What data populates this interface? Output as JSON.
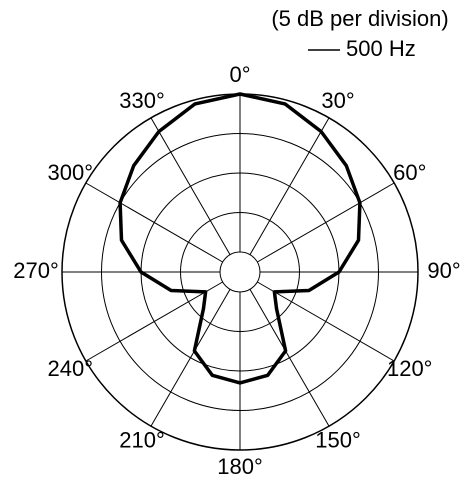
{
  "chart_data": {
    "type": "polar",
    "title": "(5 dB per division)",
    "series": [
      {
        "name": "500 Hz",
        "color": "#000000",
        "theta": [
          0,
          15,
          30,
          45,
          60,
          75,
          90,
          105,
          120,
          135,
          150,
          165,
          180,
          195,
          210,
          225,
          240,
          255,
          270,
          285,
          300,
          315,
          330,
          345
        ],
        "values": [
          0,
          -0.5,
          -2,
          -3.5,
          -5,
          -7,
          -10,
          -13.5,
          -17.5,
          -16,
          -11,
          -9,
          -8.5,
          -9,
          -11,
          -16,
          -17.5,
          -13.5,
          -10,
          -7,
          -5,
          -3.5,
          -2,
          -0.5
        ]
      }
    ],
    "rlim": [
      -20,
      0
    ],
    "rticks": [
      -20,
      -15,
      -10,
      -5,
      0
    ],
    "thetaticks": [
      {
        "value": 0,
        "label": "0°"
      },
      {
        "value": 30,
        "label": "30°"
      },
      {
        "value": 60,
        "label": "60°"
      },
      {
        "value": 90,
        "label": "90°"
      },
      {
        "value": 120,
        "label": "120°"
      },
      {
        "value": 150,
        "label": "150°"
      },
      {
        "value": 180,
        "label": "180°"
      },
      {
        "value": 210,
        "label": "210°"
      },
      {
        "value": 240,
        "label": "240°"
      },
      {
        "value": 270,
        "label": "270°"
      },
      {
        "value": 300,
        "label": "300°"
      },
      {
        "value": 330,
        "label": "330°"
      }
    ]
  }
}
